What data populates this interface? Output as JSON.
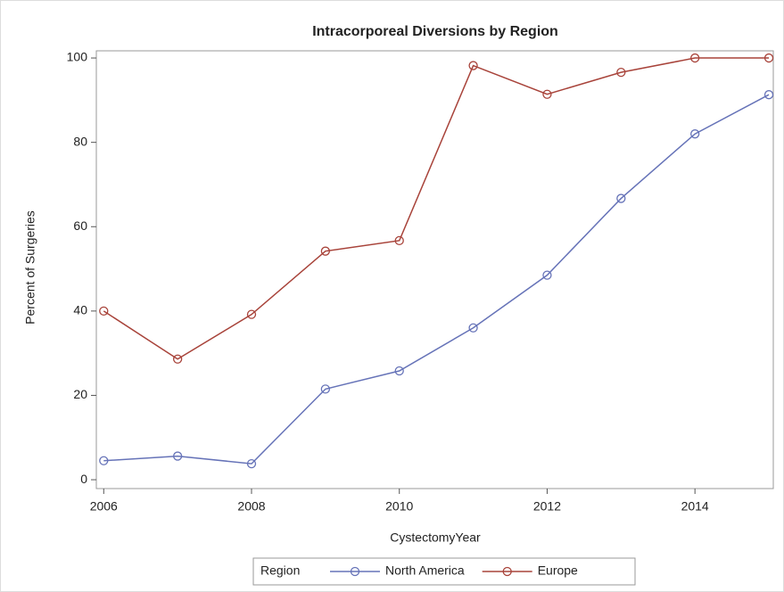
{
  "chart_data": {
    "type": "line",
    "title": "Intracorporeal Diversions by Region",
    "x_label": "CystectomyYear",
    "y_label": "Percent of Surgeries",
    "x": [
      2006,
      2007,
      2008,
      2009,
      2010,
      2011,
      2012,
      2013,
      2014,
      2015
    ],
    "series": [
      {
        "name": "North America",
        "color": "#6673b8",
        "values": [
          4.5,
          5.6,
          3.8,
          21.5,
          25.8,
          36,
          48.5,
          66.7,
          82,
          91.3
        ]
      },
      {
        "name": "Europe",
        "color": "#a8433a",
        "values": [
          40,
          28.6,
          39.2,
          54.2,
          56.7,
          98.2,
          91.4,
          96.6,
          100,
          100
        ]
      }
    ],
    "xlim": [
      2005.9,
      2015.06
    ],
    "xticks": [
      2006,
      2008,
      2010,
      2012,
      2014
    ],
    "ylim": [
      -2.1,
      101.7
    ],
    "yticks": [
      0,
      20,
      40,
      60,
      80,
      100
    ],
    "legend_title": "Region",
    "legend": "bottom"
  }
}
